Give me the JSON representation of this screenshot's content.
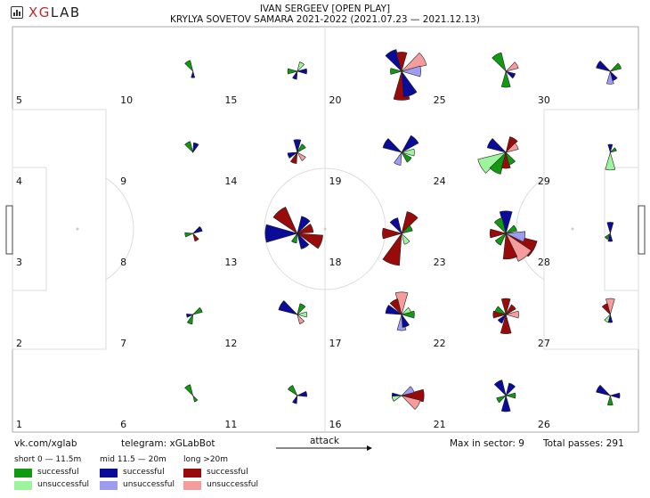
{
  "brand": {
    "prefix": "XG",
    "suffix": "LAB"
  },
  "header": {
    "line1": "IVAN SERGEEV [OPEN PLAY]",
    "line2": "KRYLYA SOVETOV SAMARA 2021-2022 (2021.07.23 — 2021.12.13)"
  },
  "footer": {
    "vk": "vk.com/xglab",
    "telegram": "telegram: xGLabBot",
    "attack": "attack",
    "max_sector": "Max in sector: 9",
    "total": "Total passes: 291"
  },
  "legend": [
    {
      "title": "short 0 — 11.5m",
      "success_label": "successful",
      "fail_label": "unsuccessful",
      "success_color": "#119911",
      "fail_color": "#9cf59c"
    },
    {
      "title": "mid 11.5 — 20m",
      "success_label": "successful",
      "fail_label": "unsuccessful",
      "success_color": "#0b0b99",
      "fail_color": "#9c9cf0"
    },
    {
      "title": "long >20m",
      "success_label": "successful",
      "fail_label": "unsuccessful",
      "success_color": "#990b0b",
      "fail_color": "#f59c9c"
    }
  ],
  "chart_data": {
    "type": "polar-rose-grid",
    "title": "IVAN SERGEEV [OPEN PLAY]",
    "subtitle": "KRYLYA SOVETOV SAMARA 2021-2022 (2021.07.23 — 2021.12.13)",
    "max_in_sector": 9,
    "total_passes": 291,
    "sectors": [
      {
        "id": 1,
        "petals": [],
        "label": "1"
      },
      {
        "id": 2,
        "label": "2",
        "petals": []
      },
      {
        "id": 3,
        "label": "3",
        "petals": []
      },
      {
        "id": 4,
        "label": "4",
        "petals": []
      },
      {
        "id": 5,
        "label": "5",
        "petals": []
      },
      {
        "id": 6,
        "label": "6",
        "petals": [
          {
            "dir": 330,
            "type": "ss",
            "v": 0.35
          },
          {
            "dir": 150,
            "type": "ss",
            "v": 0.2
          }
        ]
      },
      {
        "id": 7,
        "label": "7",
        "petals": [
          {
            "dir": 60,
            "type": "ss",
            "v": 0.3
          },
          {
            "dir": 200,
            "type": "ss",
            "v": 0.3
          },
          {
            "dir": 260,
            "type": "ms",
            "v": 0.2
          }
        ]
      },
      {
        "id": 8,
        "label": "8",
        "petals": [
          {
            "dir": 60,
            "type": "ms",
            "v": 0.3
          },
          {
            "dir": 150,
            "type": "ls",
            "v": 0.25
          },
          {
            "dir": 260,
            "type": "ss",
            "v": 0.25
          }
        ]
      },
      {
        "id": 9,
        "label": "9",
        "petals": [
          {
            "dir": 20,
            "type": "ms",
            "v": 0.3
          },
          {
            "dir": 330,
            "type": "ss",
            "v": 0.35
          }
        ]
      },
      {
        "id": 10,
        "label": "10",
        "petals": [
          {
            "dir": 330,
            "type": "ss",
            "v": 0.35
          },
          {
            "dir": 180,
            "type": "ms",
            "v": 0.2
          }
        ]
      },
      {
        "id": 11,
        "label": "11",
        "petals": [
          {
            "dir": 320,
            "type": "ss",
            "v": 0.35
          },
          {
            "dir": 80,
            "type": "ms",
            "v": 0.3
          },
          {
            "dir": 200,
            "type": "ms",
            "v": 0.25
          }
        ]
      },
      {
        "id": 12,
        "label": "12",
        "petals": [
          {
            "dir": 300,
            "type": "ms",
            "v": 0.6
          },
          {
            "dir": 30,
            "type": "ss",
            "v": 0.35
          },
          {
            "dir": 90,
            "type": "sf",
            "v": 0.3
          },
          {
            "dir": 150,
            "type": "lf",
            "v": 0.3
          }
        ]
      },
      {
        "id": 13,
        "label": "13",
        "petals": [
          {
            "dir": 270,
            "type": "ms",
            "v": 1.0
          },
          {
            "dir": 320,
            "type": "ls",
            "v": 0.9
          },
          {
            "dir": 30,
            "type": "ms",
            "v": 0.55
          },
          {
            "dir": 70,
            "type": "ls",
            "v": 0.5
          },
          {
            "dir": 110,
            "type": "ls",
            "v": 0.8
          },
          {
            "dir": 150,
            "type": "ms",
            "v": 0.5
          },
          {
            "dir": 200,
            "type": "ss",
            "v": 0.3
          }
        ]
      },
      {
        "id": 14,
        "label": "14",
        "petals": [
          {
            "dir": 0,
            "type": "ms",
            "v": 0.4
          },
          {
            "dir": 45,
            "type": "ss",
            "v": 0.3
          },
          {
            "dir": 135,
            "type": "lf",
            "v": 0.3
          },
          {
            "dir": 200,
            "type": "ls",
            "v": 0.35
          },
          {
            "dir": 250,
            "type": "ms",
            "v": 0.3
          }
        ]
      },
      {
        "id": 15,
        "label": "15",
        "petals": [
          {
            "dir": 270,
            "type": "ss",
            "v": 0.3
          },
          {
            "dir": 90,
            "type": "ms",
            "v": 0.3
          },
          {
            "dir": 200,
            "type": "ms",
            "v": 0.25
          },
          {
            "dir": 30,
            "type": "sf",
            "v": 0.3
          }
        ]
      },
      {
        "id": 16,
        "label": "16",
        "petals": [
          {
            "dir": 90,
            "type": "ls",
            "v": 0.7
          },
          {
            "dir": 120,
            "type": "lf",
            "v": 0.6
          },
          {
            "dir": 60,
            "type": "mf",
            "v": 0.4
          },
          {
            "dir": 270,
            "type": "ms",
            "v": 0.3
          },
          {
            "dir": 250,
            "type": "sf",
            "v": 0.3
          }
        ]
      },
      {
        "id": 17,
        "label": "17",
        "petals": [
          {
            "dir": 0,
            "type": "lf",
            "v": 0.7
          },
          {
            "dir": 330,
            "type": "ls",
            "v": 0.5
          },
          {
            "dir": 290,
            "type": "ms",
            "v": 0.5
          },
          {
            "dir": 180,
            "type": "mf",
            "v": 0.5
          },
          {
            "dir": 160,
            "type": "ms",
            "v": 0.4
          },
          {
            "dir": 90,
            "type": "ss",
            "v": 0.4
          },
          {
            "dir": 60,
            "type": "sf",
            "v": 0.3
          }
        ]
      },
      {
        "id": 18,
        "label": "18",
        "petals": [
          {
            "dir": 200,
            "type": "ls",
            "v": 1.0
          },
          {
            "dir": 270,
            "type": "ls",
            "v": 0.6
          },
          {
            "dir": 30,
            "type": "ls",
            "v": 0.7
          },
          {
            "dir": 330,
            "type": "ms",
            "v": 0.5
          },
          {
            "dir": 60,
            "type": "ss",
            "v": 0.35
          },
          {
            "dir": 150,
            "type": "sf",
            "v": 0.35
          }
        ]
      },
      {
        "id": 19,
        "label": "19",
        "petals": [
          {
            "dir": 300,
            "type": "ms",
            "v": 0.6
          },
          {
            "dir": 45,
            "type": "ms",
            "v": 0.6
          },
          {
            "dir": 90,
            "type": "sf",
            "v": 0.4
          },
          {
            "dir": 135,
            "type": "ss",
            "v": 0.35
          },
          {
            "dir": 200,
            "type": "mf",
            "v": 0.4
          }
        ]
      },
      {
        "id": 20,
        "label": "20",
        "petals": [
          {
            "dir": 0,
            "type": "ls",
            "v": 0.6
          },
          {
            "dir": 330,
            "type": "ms",
            "v": 0.7
          },
          {
            "dir": 60,
            "type": "lf",
            "v": 0.8
          },
          {
            "dir": 90,
            "type": "mf",
            "v": 0.6
          },
          {
            "dir": 180,
            "type": "ls",
            "v": 0.9
          },
          {
            "dir": 160,
            "type": "ms",
            "v": 0.8
          },
          {
            "dir": 270,
            "type": "ss",
            "v": 0.35
          }
        ]
      },
      {
        "id": 21,
        "label": "21",
        "petals": [
          {
            "dir": 330,
            "type": "ms",
            "v": 0.5
          },
          {
            "dir": 30,
            "type": "ms",
            "v": 0.4
          },
          {
            "dir": 180,
            "type": "ms",
            "v": 0.5
          },
          {
            "dir": 90,
            "type": "ss",
            "v": 0.3
          },
          {
            "dir": 240,
            "type": "ss",
            "v": 0.3
          }
        ]
      },
      {
        "id": 22,
        "label": "22",
        "petals": [
          {
            "dir": 0,
            "type": "ls",
            "v": 0.5
          },
          {
            "dir": 90,
            "type": "lf",
            "v": 0.4
          },
          {
            "dir": 45,
            "type": "ls",
            "v": 0.35
          },
          {
            "dir": 180,
            "type": "ls",
            "v": 0.6
          },
          {
            "dir": 270,
            "type": "ls",
            "v": 0.4
          },
          {
            "dir": 300,
            "type": "ss",
            "v": 0.35
          },
          {
            "dir": 220,
            "type": "ms",
            "v": 0.3
          }
        ]
      },
      {
        "id": 23,
        "label": "23",
        "petals": [
          {
            "dir": 0,
            "type": "ms",
            "v": 0.7
          },
          {
            "dir": 330,
            "type": "ss",
            "v": 0.5
          },
          {
            "dir": 120,
            "type": "ls",
            "v": 1.0
          },
          {
            "dir": 140,
            "type": "lf",
            "v": 0.95
          },
          {
            "dir": 100,
            "type": "mf",
            "v": 0.6
          },
          {
            "dir": 170,
            "type": "ls",
            "v": 0.8
          },
          {
            "dir": 220,
            "type": "ss",
            "v": 0.4
          },
          {
            "dir": 270,
            "type": "ls",
            "v": 0.5
          },
          {
            "dir": 60,
            "type": "ss",
            "v": 0.35
          }
        ]
      },
      {
        "id": 24,
        "label": "24",
        "petals": [
          {
            "dir": 240,
            "type": "sf",
            "v": 0.9
          },
          {
            "dir": 210,
            "type": "ss",
            "v": 0.7
          },
          {
            "dir": 300,
            "type": "ms",
            "v": 0.6
          },
          {
            "dir": 30,
            "type": "ls",
            "v": 0.5
          },
          {
            "dir": 60,
            "type": "lf",
            "v": 0.4
          },
          {
            "dir": 180,
            "type": "ls",
            "v": 0.5
          },
          {
            "dir": 150,
            "type": "ss",
            "v": 0.4
          }
        ]
      },
      {
        "id": 25,
        "label": "25",
        "petals": [
          {
            "dir": 330,
            "type": "ss",
            "v": 0.6
          },
          {
            "dir": 60,
            "type": "lf",
            "v": 0.4
          },
          {
            "dir": 180,
            "type": "ss",
            "v": 0.5
          },
          {
            "dir": 120,
            "type": "ms",
            "v": 0.3
          }
        ]
      },
      {
        "id": 26,
        "label": "26",
        "petals": [
          {
            "dir": 300,
            "type": "ms",
            "v": 0.45
          },
          {
            "dir": 90,
            "type": "ms",
            "v": 0.3
          },
          {
            "dir": 180,
            "type": "ss",
            "v": 0.3
          }
        ]
      },
      {
        "id": 27,
        "label": "27",
        "petals": [
          {
            "dir": 0,
            "type": "lf",
            "v": 0.5
          },
          {
            "dir": 330,
            "type": "ls",
            "v": 0.35
          },
          {
            "dir": 180,
            "type": "ms",
            "v": 0.25
          },
          {
            "dir": 210,
            "type": "sf",
            "v": 0.25
          }
        ]
      },
      {
        "id": 28,
        "label": "28",
        "petals": [
          {
            "dir": 0,
            "type": "ms",
            "v": 0.35
          },
          {
            "dir": 180,
            "type": "ms",
            "v": 0.25
          },
          {
            "dir": 220,
            "type": "ss",
            "v": 0.2
          }
        ]
      },
      {
        "id": 29,
        "label": "29",
        "petals": [
          {
            "dir": 180,
            "type": "sf",
            "v": 0.55
          },
          {
            "dir": 0,
            "type": "ms",
            "v": 0.25
          },
          {
            "dir": 60,
            "type": "ss",
            "v": 0.2
          }
        ]
      },
      {
        "id": 30,
        "label": "30",
        "petals": [
          {
            "dir": 300,
            "type": "ms",
            "v": 0.45
          },
          {
            "dir": 60,
            "type": "ss",
            "v": 0.35
          },
          {
            "dir": 180,
            "type": "mf",
            "v": 0.4
          },
          {
            "dir": 150,
            "type": "ms",
            "v": 0.3
          }
        ]
      }
    ]
  }
}
